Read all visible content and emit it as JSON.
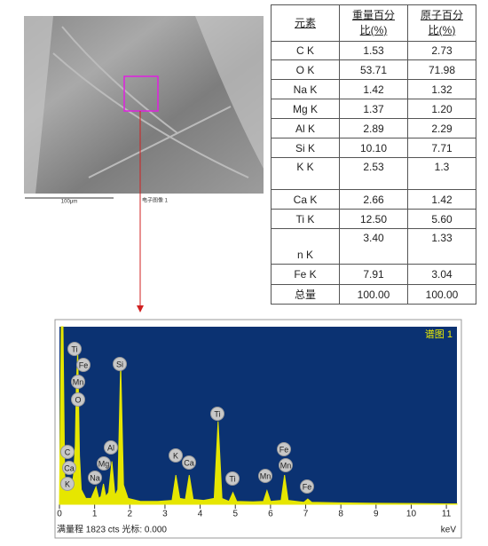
{
  "image": {
    "scale_bar": "100μm",
    "caption": "电子图像 1"
  },
  "table": {
    "header": [
      "元素",
      "重量百分比(%)",
      "原子百分比(%)"
    ],
    "rows": [
      [
        "C K",
        "1.53",
        "2.73"
      ],
      [
        "O K",
        "53.71",
        "71.98"
      ],
      [
        "Na K",
        "1.42",
        "1.32"
      ],
      [
        "Mg K",
        "1.37",
        "1.20"
      ],
      [
        "Al K",
        "2.89",
        "2.29"
      ],
      [
        "Si K",
        "10.10",
        "7.71"
      ],
      [
        "K K",
        "2.53",
        "1.3"
      ],
      [
        "Ca K",
        "2.66",
        "1.42"
      ],
      [
        "Ti K",
        "12.50",
        "5.60"
      ],
      [
        "n K",
        "3.40",
        "1.33"
      ],
      [
        "Fe K",
        "7.91",
        "3.04"
      ],
      [
        "总量",
        "100.00",
        "100.00"
      ]
    ]
  },
  "chart_data": {
    "type": "area",
    "title": "谱图 1",
    "x_label": "keV",
    "footer": "满量程 1823 cts 光标: 0.000",
    "xlim": [
      0,
      11.3
    ],
    "ylim": [
      0,
      1823
    ],
    "xticks": [
      0,
      1,
      2,
      3,
      4,
      5,
      6,
      7,
      8,
      9,
      10,
      11
    ],
    "series": [
      {
        "name": "谱图 1",
        "color": "#e6e600",
        "x": [
          0,
          0.05,
          0.1,
          0.15,
          0.22,
          0.28,
          0.34,
          0.4,
          0.45,
          0.48,
          0.52,
          0.57,
          0.62,
          0.75,
          0.9,
          1.04,
          1.12,
          1.18,
          1.25,
          1.32,
          1.4,
          1.49,
          1.58,
          1.66,
          1.74,
          1.82,
          1.95,
          2.3,
          2.8,
          3.2,
          3.31,
          3.42,
          3.58,
          3.69,
          3.8,
          4.1,
          4.4,
          4.51,
          4.62,
          4.82,
          4.93,
          5.04,
          5.5,
          5.8,
          5.9,
          6.0,
          6.3,
          6.4,
          6.5,
          6.95,
          7.06,
          7.17,
          8,
          9,
          10,
          11,
          11.3
        ],
        "values": [
          0,
          1823,
          1823,
          300,
          150,
          270,
          150,
          300,
          600,
          1200,
          1580,
          500,
          150,
          60,
          60,
          180,
          60,
          80,
          210,
          80,
          120,
          440,
          90,
          150,
          1460,
          200,
          60,
          30,
          30,
          40,
          300,
          60,
          50,
          300,
          50,
          40,
          60,
          850,
          60,
          30,
          120,
          30,
          25,
          30,
          140,
          30,
          40,
          300,
          40,
          20,
          55,
          20,
          15,
          10,
          8,
          5,
          5
        ]
      }
    ],
    "peak_labels": [
      "Ti",
      "Fe",
      "Mn",
      "O",
      "C",
      "Ca",
      "K",
      "Na",
      "Mg",
      "Al",
      "Si",
      "K",
      "Ca",
      "Ti",
      "Ti",
      "Mn",
      "Fe",
      "Mn",
      "Fe"
    ]
  }
}
